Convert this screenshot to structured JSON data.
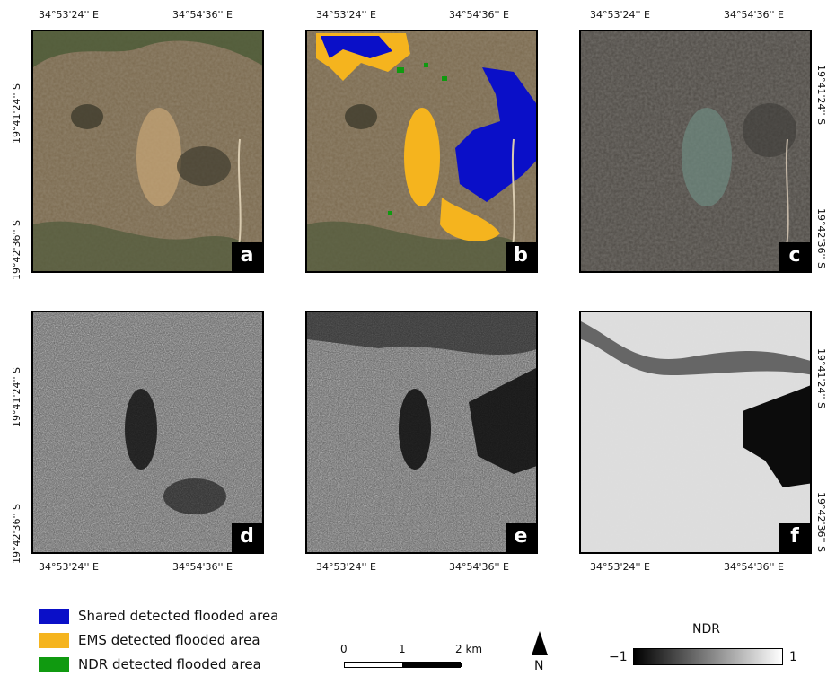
{
  "coords": {
    "lon_left": "34°53'24'' E",
    "lon_right": "34°54'36'' E",
    "lat_top": "19°41'24'' S",
    "lat_bottom": "19°42'36'' S"
  },
  "panels": [
    {
      "label": "a",
      "kind": "rgb-pre"
    },
    {
      "label": "b",
      "kind": "rgb-flood-overlay"
    },
    {
      "label": "c",
      "kind": "rgb-post"
    },
    {
      "label": "d",
      "kind": "sar-pre"
    },
    {
      "label": "e",
      "kind": "sar-post"
    },
    {
      "label": "f",
      "kind": "ndr"
    }
  ],
  "legend": {
    "items": [
      {
        "label": "Shared detected flooded area",
        "color": "#0a0fc8"
      },
      {
        "label": "EMS detected flooded area",
        "color": "#f5b41e"
      },
      {
        "label": "NDR detected flooded area",
        "color": "#109a10"
      }
    ]
  },
  "scalebar": {
    "ticks": [
      "0",
      "1",
      "2 km"
    ]
  },
  "north_arrow": {
    "label": "N"
  },
  "colorbar": {
    "title": "NDR",
    "min": "−1",
    "max": "1"
  }
}
